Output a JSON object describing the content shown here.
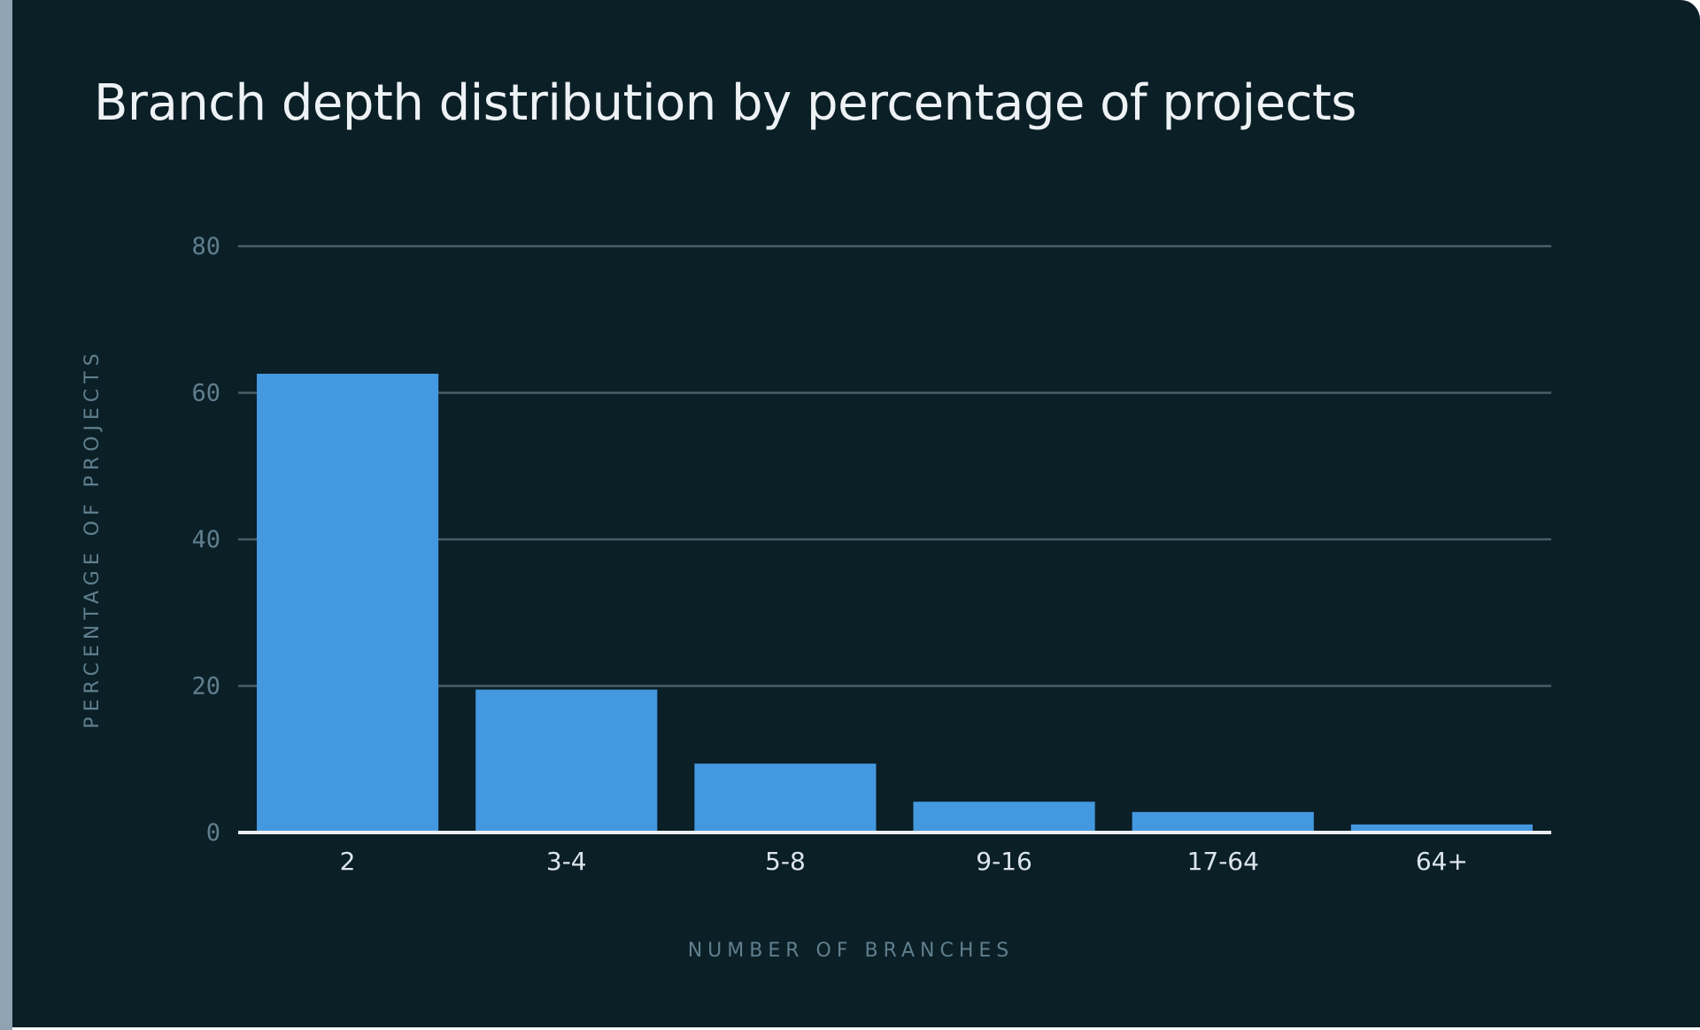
{
  "colors": {
    "background": "#0b1f27",
    "bar": "#4498df",
    "grid": "#4a5e68",
    "axis": "#e8eef1",
    "title": "#eef2f4",
    "muted_text": "#5f7f8e",
    "tick_text": "#dce5ea"
  },
  "chart_data": {
    "type": "bar",
    "title": "Branch depth distribution by percentage of projects",
    "xlabel": "NUMBER OF BRANCHES",
    "ylabel": "PERCENTAGE OF PROJECTS",
    "categories": [
      "2",
      "3-4",
      "5-8",
      "9-16",
      "17-64",
      "64+"
    ],
    "values": [
      62.6,
      19.5,
      9.4,
      4.2,
      2.8,
      1.1
    ],
    "ylim": [
      0,
      80
    ],
    "yticks": [
      "0",
      "20",
      "40",
      "60",
      "80"
    ],
    "grid": true,
    "legend": "none"
  }
}
